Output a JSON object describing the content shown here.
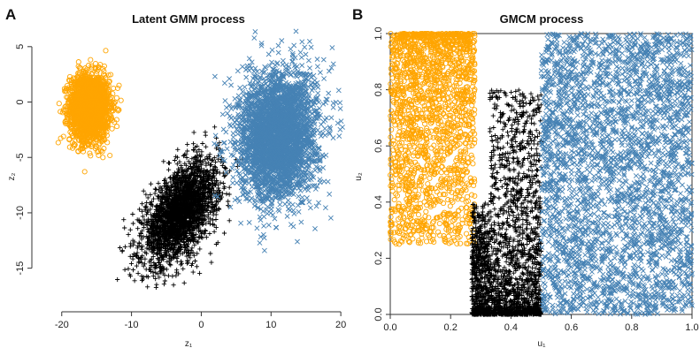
{
  "figure": {
    "panels": [
      {
        "letter": "A",
        "title": "Latent GMM process",
        "xlabel": "z₁",
        "ylabel": "z₂"
      },
      {
        "letter": "B",
        "title": "GMCM process",
        "xlabel": "u₁",
        "ylabel": "u₂"
      }
    ]
  },
  "chart_data": [
    {
      "type": "scatter",
      "title": "Latent GMM process",
      "xlabel": "z₁",
      "ylabel": "z₂",
      "xlim": [
        -22,
        21
      ],
      "ylim": [
        -17.5,
        6.5
      ],
      "xticks": [
        -20,
        -10,
        0,
        10,
        20
      ],
      "yticks": [
        5,
        0,
        -5,
        -10,
        -15
      ],
      "grid": false,
      "series": [
        {
          "marker": "circle",
          "color": "#FFA500",
          "center": [
            -16,
            -0.5
          ],
          "sd": [
            1.4,
            1.5
          ],
          "corr": 0.0,
          "n": 2200,
          "x_range": [
            -21,
            -11
          ],
          "y_range": [
            -6.5,
            5.5
          ]
        },
        {
          "marker": "plus",
          "color": "#000000",
          "center": [
            -3,
            -10
          ],
          "sd": [
            2.7,
            2.3
          ],
          "corr": 0.55,
          "n": 2500,
          "x_range": [
            -14,
            6
          ],
          "y_range": [
            -17,
            -1
          ]
        },
        {
          "marker": "cross",
          "color": "#4682B4",
          "center": [
            11,
            -3
          ],
          "sd": [
            2.8,
            2.9
          ],
          "corr": 0.1,
          "n": 3400,
          "x_range": [
            1,
            21
          ],
          "y_range": [
            -14,
            6.5
          ]
        }
      ]
    },
    {
      "type": "scatter",
      "title": "GMCM process",
      "xlabel": "u₁",
      "ylabel": "u₂",
      "xlim": [
        0,
        1
      ],
      "ylim": [
        0,
        1
      ],
      "xticks": [
        0.0,
        0.2,
        0.4,
        0.6,
        0.8,
        1.0
      ],
      "yticks": [
        0.0,
        0.2,
        0.4,
        0.6,
        0.8,
        1.0
      ],
      "grid": false,
      "series": [
        {
          "marker": "circle",
          "color": "#FFA500",
          "x_range": [
            0.0,
            0.28
          ],
          "y_range": [
            0.25,
            1.0
          ],
          "n": 1800
        },
        {
          "marker": "plus",
          "color": "#000000",
          "x_range": [
            0.27,
            0.5
          ],
          "y_range": [
            0.0,
            0.8
          ],
          "n": 2200
        },
        {
          "marker": "cross",
          "color": "#4682B4",
          "x_range": [
            0.5,
            1.0
          ],
          "y_range": [
            0.0,
            1.0
          ],
          "n": 3200
        }
      ]
    }
  ]
}
